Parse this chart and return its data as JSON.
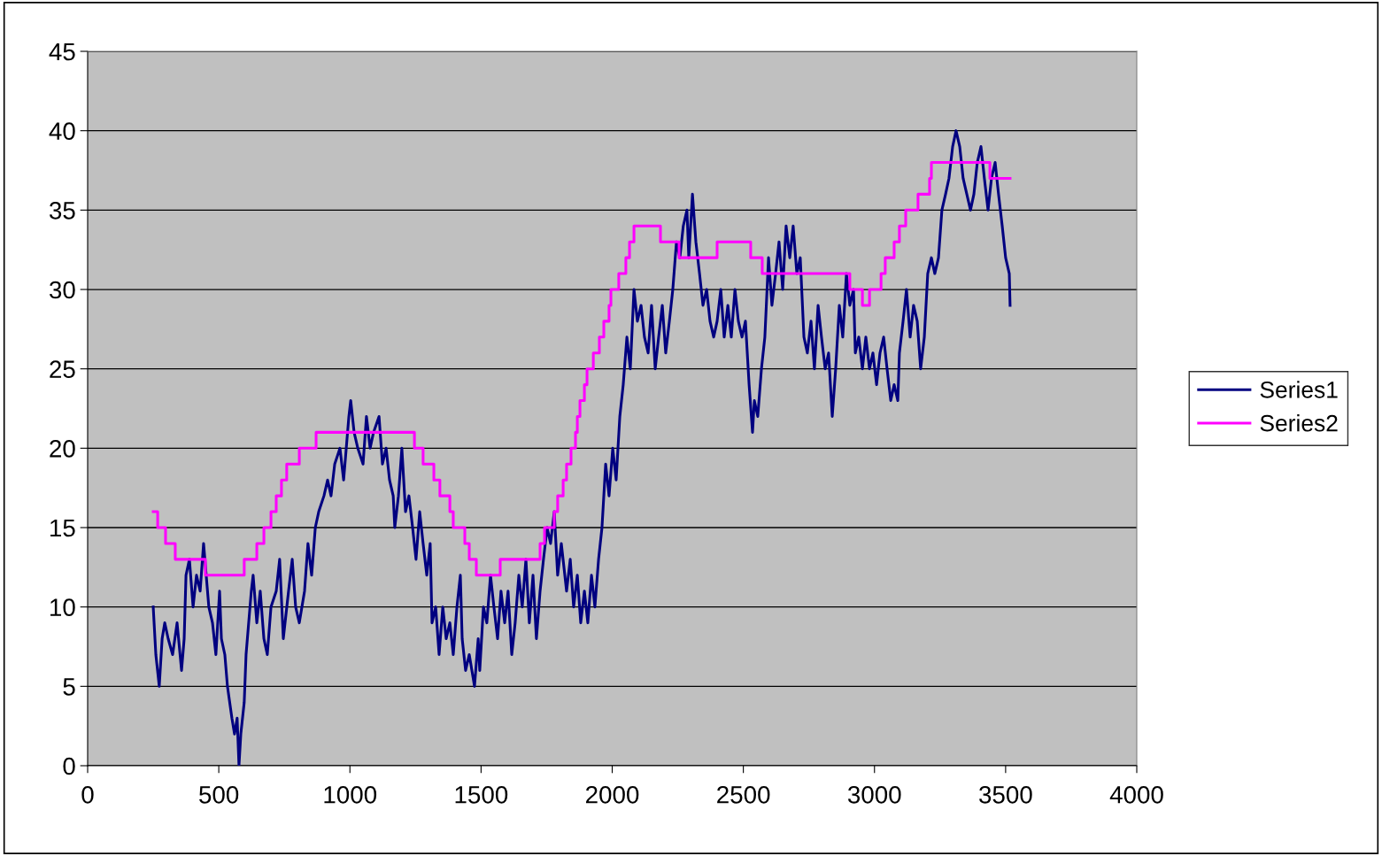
{
  "chart_data": {
    "type": "line",
    "xlim": [
      0,
      4000
    ],
    "xticks": [
      0,
      500,
      1000,
      1500,
      2000,
      2500,
      3000,
      3500,
      4000
    ],
    "ylim": [
      0,
      45
    ],
    "yticks": [
      0,
      5,
      10,
      15,
      20,
      25,
      30,
      35,
      40,
      45
    ],
    "grid": "y",
    "legend": "right",
    "marker": "none",
    "line_style": "solid",
    "series": [
      {
        "name": "Series1",
        "color": "#000080",
        "x": [
          250,
          260,
          273,
          284,
          294,
          307,
          324,
          341,
          358,
          368,
          375,
          388,
          402,
          415,
          429,
          442,
          462,
          476,
          489,
          503,
          510,
          523,
          533,
          550,
          560,
          570,
          577,
          584,
          597,
          604,
          624,
          631,
          645,
          658,
          672,
          685,
          699,
          719,
          732,
          746,
          766,
          780,
          793,
          807,
          827,
          840,
          854,
          868,
          881,
          901,
          915,
          928,
          942,
          962,
          976,
          996,
          1003,
          1016,
          1030,
          1050,
          1063,
          1077,
          1090,
          1111,
          1124,
          1138,
          1151,
          1165,
          1171,
          1185,
          1198,
          1212,
          1225,
          1239,
          1252,
          1266,
          1279,
          1293,
          1306,
          1313,
          1327,
          1340,
          1354,
          1367,
          1381,
          1394,
          1408,
          1421,
          1428,
          1441,
          1455,
          1475,
          1489,
          1495,
          1509,
          1522,
          1536,
          1549,
          1563,
          1576,
          1590,
          1603,
          1617,
          1630,
          1644,
          1657,
          1671,
          1684,
          1698,
          1711,
          1725,
          1738,
          1752,
          1765,
          1779,
          1792,
          1806,
          1826,
          1840,
          1853,
          1867,
          1880,
          1894,
          1907,
          1921,
          1934,
          1948,
          1961,
          1975,
          1988,
          2002,
          2015,
          2029,
          2042,
          2056,
          2069,
          2083,
          2096,
          2110,
          2123,
          2137,
          2150,
          2164,
          2177,
          2191,
          2204,
          2218,
          2231,
          2245,
          2258,
          2271,
          2285,
          2292,
          2306,
          2319,
          2333,
          2346,
          2360,
          2373,
          2387,
          2400,
          2414,
          2427,
          2441,
          2454,
          2468,
          2481,
          2495,
          2508,
          2522,
          2535,
          2542,
          2555,
          2569,
          2582,
          2596,
          2609,
          2623,
          2636,
          2650,
          2663,
          2677,
          2690,
          2704,
          2717,
          2731,
          2744,
          2758,
          2771,
          2785,
          2798,
          2812,
          2825,
          2839,
          2852,
          2866,
          2879,
          2893,
          2906,
          2920,
          2927,
          2940,
          2954,
          2967,
          2981,
          2994,
          3008,
          3021,
          3035,
          3048,
          3062,
          3075,
          3089,
          3095,
          3109,
          3122,
          3136,
          3149,
          3163,
          3176,
          3190,
          3203,
          3217,
          3230,
          3244,
          3257,
          3271,
          3284,
          3298,
          3311,
          3325,
          3338,
          3352,
          3366,
          3379,
          3392,
          3406,
          3419,
          3433,
          3446,
          3460,
          3473,
          3487,
          3500,
          3514,
          3517
        ],
        "values": [
          10,
          7,
          5,
          8,
          9,
          8,
          7,
          9,
          6,
          8,
          12,
          13,
          10,
          12,
          11,
          14,
          10,
          9,
          7,
          11,
          8,
          7,
          5,
          3,
          2,
          3,
          0,
          2,
          4,
          7,
          11,
          12,
          9,
          11,
          8,
          7,
          10,
          11,
          13,
          8,
          11,
          13,
          10,
          9,
          11,
          14,
          12,
          15,
          16,
          17,
          18,
          17,
          19,
          20,
          18,
          22,
          23,
          21,
          20,
          19,
          22,
          20,
          21,
          22,
          19,
          20,
          18,
          17,
          15,
          17,
          20,
          16,
          17,
          15,
          13,
          16,
          14,
          12,
          14,
          9,
          10,
          7,
          10,
          8,
          9,
          7,
          10,
          12,
          8,
          6,
          7,
          5,
          8,
          6,
          10,
          9,
          12,
          10,
          8,
          11,
          9,
          11,
          7,
          9,
          12,
          10,
          13,
          9,
          12,
          8,
          11,
          13,
          15,
          14,
          16,
          12,
          14,
          11,
          13,
          10,
          12,
          9,
          11,
          9,
          12,
          10,
          13,
          15,
          19,
          17,
          20,
          18,
          22,
          24,
          27,
          25,
          30,
          28,
          29,
          27,
          26,
          29,
          25,
          27,
          29,
          26,
          28,
          30,
          33,
          32,
          34,
          35,
          32,
          36,
          33,
          31,
          29,
          30,
          28,
          27,
          28,
          30,
          27,
          29,
          27,
          30,
          28,
          27,
          28,
          24,
          21,
          23,
          22,
          25,
          27,
          32,
          29,
          31,
          33,
          30,
          34,
          32,
          34,
          31,
          32,
          27,
          26,
          28,
          25,
          29,
          27,
          25,
          26,
          22,
          25,
          29,
          27,
          31,
          29,
          30,
          26,
          27,
          25,
          27,
          25,
          26,
          24,
          26,
          27,
          25,
          23,
          24,
          23,
          26,
          28,
          30,
          27,
          29,
          28,
          25,
          27,
          31,
          32,
          31,
          32,
          35,
          36,
          37,
          39,
          40,
          39,
          37,
          36,
          35,
          36,
          38,
          39,
          37,
          35,
          37,
          38,
          36,
          34,
          32,
          31,
          29
        ]
      },
      {
        "name": "Series2",
        "color": "#ff00ff",
        "type": "step",
        "x": [
          250,
          267,
          297,
          334,
          449,
          597,
          645,
          672,
          699,
          719,
          739,
          759,
          807,
          871,
          1246,
          1279,
          1320,
          1343,
          1381,
          1394,
          1438,
          1455,
          1482,
          1573,
          1725,
          1742,
          1779,
          1792,
          1813,
          1826,
          1843,
          1860,
          1867,
          1877,
          1894,
          1904,
          1928,
          1951,
          1968,
          1988,
          1995,
          2025,
          2052,
          2066,
          2083,
          2184,
          2255,
          2400,
          2528,
          2572,
          2906,
          2954,
          2981,
          3025,
          3041,
          3075,
          3095,
          3119,
          3166,
          3210,
          3217,
          3440,
          3517
        ],
        "values": [
          16,
          15,
          14,
          13,
          12,
          13,
          14,
          15,
          16,
          17,
          18,
          19,
          20,
          21,
          20,
          19,
          18,
          17,
          16,
          15,
          14,
          13,
          12,
          13,
          14,
          15,
          16,
          17,
          18,
          19,
          20,
          21,
          22,
          23,
          24,
          25,
          26,
          27,
          28,
          29,
          30,
          31,
          32,
          33,
          34,
          33,
          32,
          33,
          32,
          31,
          30,
          29,
          30,
          31,
          32,
          33,
          34,
          35,
          36,
          37,
          38,
          37,
          37
        ]
      }
    ]
  }
}
